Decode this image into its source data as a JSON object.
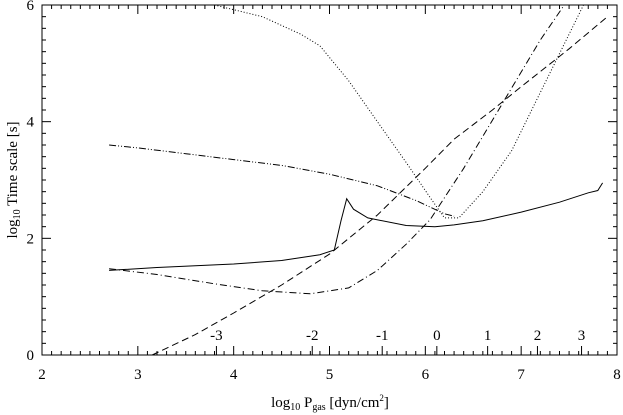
{
  "chart_data": {
    "type": "line",
    "xlabel": {
      "prefix": "log",
      "sub": "10",
      "main": " P",
      "main_sub": "gas",
      "unit": " [dyn/cm",
      "unit_sup": "2",
      "unit_end": "]"
    },
    "ylabel": {
      "prefix": "log",
      "sub": "10",
      "rest": " Time scale [s]"
    },
    "xlim": [
      2,
      8
    ],
    "ylim": [
      0,
      6
    ],
    "x_ticks": [
      "2",
      "3",
      "4",
      "5",
      "6",
      "7",
      "8"
    ],
    "y_ticks": [
      "0",
      "2",
      "4",
      "6"
    ],
    "x_tick_values": [
      2,
      3,
      4,
      5,
      6,
      7,
      8
    ],
    "y_tick_values": [
      0,
      2,
      4,
      6
    ],
    "inner_axis": {
      "labels": [
        "-3",
        "-2",
        "-1",
        "0",
        "1",
        "2",
        "3"
      ],
      "positions": [
        3.82,
        4.82,
        5.55,
        6.12,
        6.65,
        7.17,
        7.63
      ]
    },
    "series": [
      {
        "dash": "solid",
        "values": [
          [
            2.7,
            1.45
          ],
          [
            3.2,
            1.5
          ],
          [
            4.0,
            1.56
          ],
          [
            4.5,
            1.62
          ],
          [
            4.9,
            1.72
          ],
          [
            5.05,
            1.8
          ],
          [
            5.12,
            2.3
          ],
          [
            5.18,
            2.68
          ],
          [
            5.25,
            2.5
          ],
          [
            5.4,
            2.35
          ],
          [
            5.8,
            2.22
          ],
          [
            6.1,
            2.2
          ],
          [
            6.3,
            2.23
          ],
          [
            6.6,
            2.3
          ],
          [
            7.0,
            2.45
          ],
          [
            7.4,
            2.62
          ],
          [
            7.7,
            2.78
          ],
          [
            7.8,
            2.82
          ],
          [
            7.85,
            2.95
          ]
        ]
      },
      {
        "dash": "dotted",
        "values": [
          [
            3.8,
            6.0
          ],
          [
            4.3,
            5.8
          ],
          [
            4.7,
            5.5
          ],
          [
            4.9,
            5.3
          ],
          [
            5.2,
            4.7
          ],
          [
            5.5,
            4.0
          ],
          [
            5.8,
            3.3
          ],
          [
            6.05,
            2.7
          ],
          [
            6.2,
            2.35
          ],
          [
            6.35,
            2.35
          ],
          [
            6.6,
            2.8
          ],
          [
            6.9,
            3.5
          ],
          [
            7.2,
            4.5
          ],
          [
            7.5,
            5.5
          ],
          [
            7.65,
            6.0
          ]
        ]
      },
      {
        "dash": "dashed",
        "values": [
          [
            3.15,
            0.0
          ],
          [
            3.6,
            0.35
          ],
          [
            4.0,
            0.72
          ],
          [
            4.5,
            1.2
          ],
          [
            5.0,
            1.73
          ],
          [
            5.5,
            2.4
          ],
          [
            6.0,
            3.2
          ],
          [
            6.3,
            3.7
          ],
          [
            6.7,
            4.2
          ],
          [
            7.0,
            4.6
          ],
          [
            7.5,
            5.25
          ],
          [
            7.9,
            5.8
          ]
        ]
      },
      {
        "dash": "dashdot",
        "values": [
          [
            2.7,
            1.48
          ],
          [
            3.2,
            1.38
          ],
          [
            3.8,
            1.22
          ],
          [
            4.3,
            1.1
          ],
          [
            4.8,
            1.05
          ],
          [
            5.2,
            1.15
          ],
          [
            5.5,
            1.45
          ],
          [
            5.8,
            1.9
          ],
          [
            6.05,
            2.32
          ],
          [
            6.4,
            3.2
          ],
          [
            6.8,
            4.3
          ],
          [
            7.2,
            5.4
          ],
          [
            7.45,
            6.0
          ]
        ]
      },
      {
        "dash": "dashdotdot",
        "values": [
          [
            2.7,
            3.6
          ],
          [
            3.0,
            3.55
          ],
          [
            3.5,
            3.45
          ],
          [
            4.0,
            3.35
          ],
          [
            4.5,
            3.25
          ],
          [
            5.0,
            3.1
          ],
          [
            5.5,
            2.9
          ],
          [
            5.9,
            2.65
          ],
          [
            6.2,
            2.42
          ],
          [
            6.3,
            2.38
          ]
        ]
      }
    ]
  }
}
